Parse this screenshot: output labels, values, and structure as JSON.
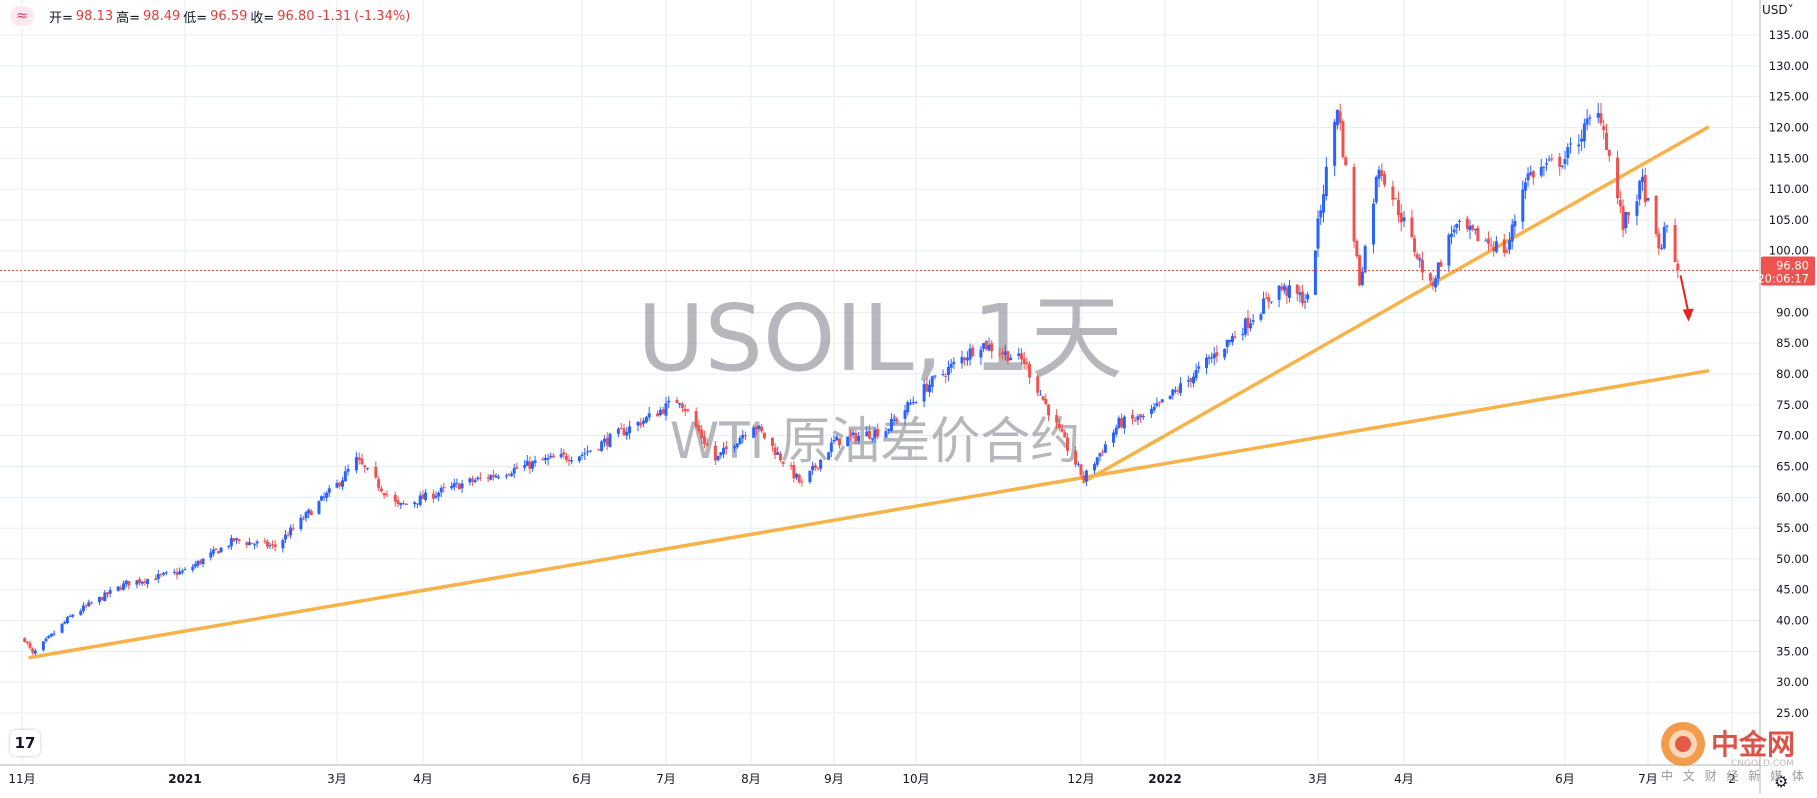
{
  "header": {
    "open_label": "开=",
    "open": "98.13",
    "high_label": "高=",
    "high": "98.49",
    "low_label": "低=",
    "low": "96.59",
    "close_label": "收=",
    "close": "96.80",
    "change": "-1.31",
    "change_pct": "(-1.34%)"
  },
  "currency": "USD˅",
  "watermark_title": "USOIL, 1天",
  "watermark_subtitle": "WTI 原油差价合约",
  "last_price_tag": {
    "price": "96.80",
    "countdown": "20:06:17"
  },
  "logo": {
    "name": "中金网",
    "sub": "中 文 财 经 新 媒 体",
    "latin": "CNGOLD.COM"
  },
  "colors": {
    "up": "#2962ff",
    "down": "#ef5350",
    "trend": "#f7b24a",
    "arrow": "#e8231c",
    "grid": "#e6eef2"
  },
  "chart_data": {
    "type": "candlestick",
    "y_axis": {
      "min": 25,
      "max": 135,
      "ticks": [
        "135.00",
        "130.00",
        "125.00",
        "120.00",
        "115.00",
        "110.00",
        "105.00",
        "100.00",
        "95.00",
        "90.00",
        "85.00",
        "80.00",
        "75.00",
        "70.00",
        "65.00",
        "60.00",
        "55.00",
        "50.00",
        "45.00",
        "40.00",
        "35.00",
        "30.00",
        "25.00"
      ]
    },
    "x_axis": {
      "ticks": [
        "11月",
        "2021",
        "3月",
        "4月",
        "6月",
        "7月",
        "8月",
        "9月",
        "10月",
        "12月",
        "2022",
        "3月",
        "4月",
        "6月",
        "7月",
        "2"
      ]
    },
    "price_path": [
      {
        "date": "2020-11-02",
        "price": 37
      },
      {
        "date": "2020-11-05",
        "price": 34.5
      },
      {
        "date": "2020-11-20",
        "price": 41
      },
      {
        "date": "2020-12-10",
        "price": 46
      },
      {
        "date": "2021-01-01",
        "price": 48
      },
      {
        "date": "2021-01-20",
        "price": 53
      },
      {
        "date": "2021-02-05",
        "price": 52
      },
      {
        "date": "2021-03-01",
        "price": 62
      },
      {
        "date": "2021-03-08",
        "price": 66
      },
      {
        "date": "2021-03-23",
        "price": 58.5
      },
      {
        "date": "2021-04-15",
        "price": 62
      },
      {
        "date": "2021-05-18",
        "price": 66
      },
      {
        "date": "2021-06-01",
        "price": 67
      },
      {
        "date": "2021-06-25",
        "price": 73
      },
      {
        "date": "2021-07-06",
        "price": 76
      },
      {
        "date": "2021-07-19",
        "price": 66
      },
      {
        "date": "2021-08-02",
        "price": 72
      },
      {
        "date": "2021-08-20",
        "price": 62
      },
      {
        "date": "2021-09-01",
        "price": 69
      },
      {
        "date": "2021-09-20",
        "price": 71
      },
      {
        "date": "2021-10-05",
        "price": 78
      },
      {
        "date": "2021-10-25",
        "price": 85
      },
      {
        "date": "2021-11-10",
        "price": 82
      },
      {
        "date": "2021-11-26",
        "price": 68
      },
      {
        "date": "2021-12-02",
        "price": 63
      },
      {
        "date": "2021-12-15",
        "price": 72
      },
      {
        "date": "2021-12-25",
        "price": 73
      },
      {
        "date": "2022-01-10",
        "price": 79
      },
      {
        "date": "2022-02-01",
        "price": 88
      },
      {
        "date": "2022-02-14",
        "price": 94
      },
      {
        "date": "2022-02-25",
        "price": 92
      },
      {
        "date": "2022-03-03",
        "price": 110
      },
      {
        "date": "2022-03-08",
        "price": 123.7
      },
      {
        "date": "2022-03-16",
        "price": 95
      },
      {
        "date": "2022-03-23",
        "price": 114
      },
      {
        "date": "2022-04-11",
        "price": 94
      },
      {
        "date": "2022-04-20",
        "price": 104
      },
      {
        "date": "2022-05-10",
        "price": 100
      },
      {
        "date": "2022-05-17",
        "price": 112
      },
      {
        "date": "2022-06-01",
        "price": 115
      },
      {
        "date": "2022-06-10",
        "price": 121
      },
      {
        "date": "2022-06-14",
        "price": 122
      },
      {
        "date": "2022-06-22",
        "price": 104
      },
      {
        "date": "2022-06-29",
        "price": 111
      },
      {
        "date": "2022-07-05",
        "price": 100
      },
      {
        "date": "2022-07-08",
        "price": 104
      },
      {
        "date": "2022-07-12",
        "price": 96.8
      }
    ],
    "last_close": 96.8,
    "trendlines": [
      {
        "from": {
          "date": "2020-11-04",
          "price": 34
        },
        "to": {
          "date": "2022-07-23",
          "price": 80.5
        }
      },
      {
        "from": {
          "date": "2021-12-02",
          "price": 62.5
        },
        "to": {
          "date": "2022-07-23",
          "price": 120
        }
      }
    ],
    "annotation_arrow": {
      "from": {
        "date": "2022-07-13",
        "price": 96
      },
      "to": {
        "date": "2022-07-16",
        "price": 88.5
      }
    }
  }
}
